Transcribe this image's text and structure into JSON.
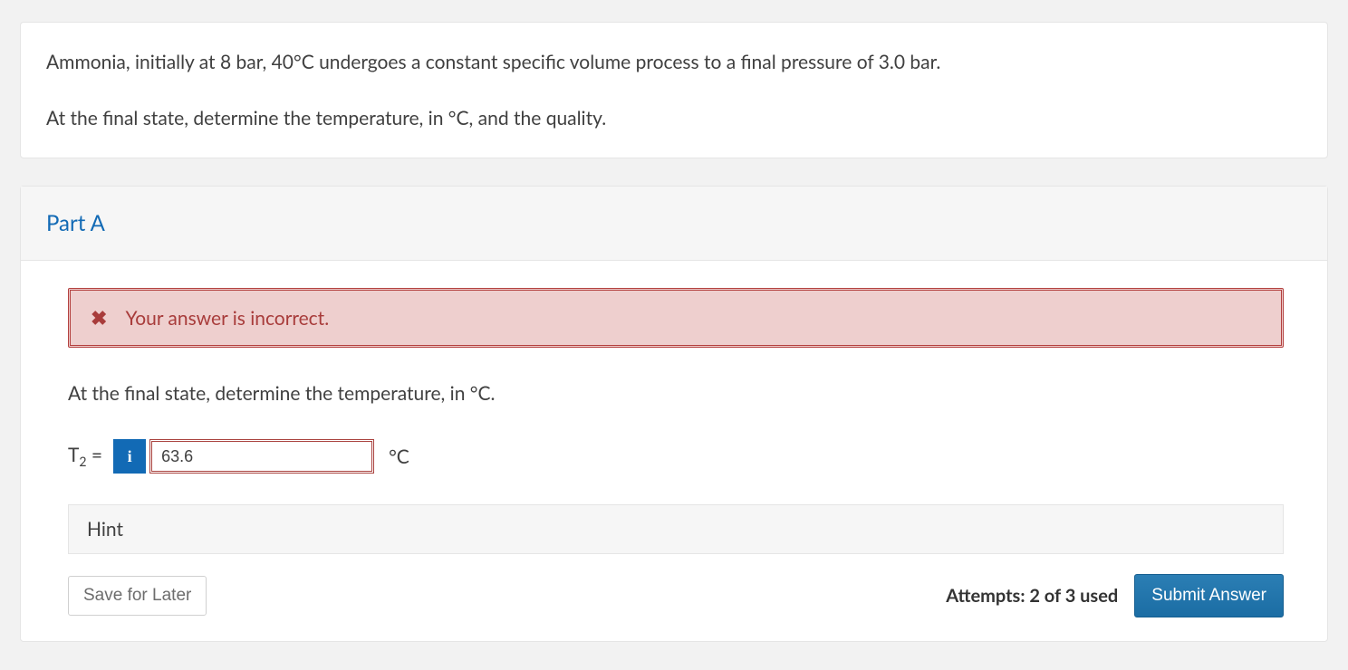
{
  "question": {
    "p1": "Ammonia, initially at 8 bar, 40°C undergoes a constant specific volume process to a final pressure of 3.0 bar.",
    "p2": "At the final state, determine the temperature, in °C, and the quality."
  },
  "part": {
    "title": "Part A",
    "alert": {
      "icon_char": "✖",
      "message": "Your answer is incorrect."
    },
    "instruction": "At the final state, determine the temperature, in °C.",
    "answer": {
      "variable_html": "T",
      "subscript": "2",
      "equals": " = ",
      "info_char": "i",
      "value": "63.6",
      "unit": "°C"
    },
    "hint_label": "Hint",
    "footer": {
      "save_label": "Save for Later",
      "attempts_text": "Attempts: 2 of 3 used",
      "submit_label": "Submit Answer"
    }
  },
  "colors": {
    "link_blue": "#126ab5",
    "error_border": "#b33f3d",
    "error_bg": "#eecfce",
    "panel_border": "#e5e5e5",
    "header_bg": "#f6f6f6",
    "body_bg": "#f2f2f2",
    "submit_bg": "#1d6fa5",
    "text": "#404040"
  }
}
